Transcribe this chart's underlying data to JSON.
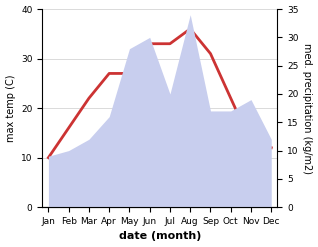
{
  "months": [
    "Jan",
    "Feb",
    "Mar",
    "Apr",
    "May",
    "Jun",
    "Jul",
    "Aug",
    "Sep",
    "Oct",
    "Nov",
    "Dec"
  ],
  "month_positions": [
    0,
    1,
    2,
    3,
    4,
    5,
    6,
    7,
    8,
    9,
    10,
    11
  ],
  "max_temp": [
    10,
    16,
    22,
    27,
    27,
    33,
    33,
    36,
    31,
    22,
    13,
    12
  ],
  "precipitation": [
    9,
    10,
    12,
    16,
    28,
    30,
    20,
    34,
    17,
    17,
    19,
    12
  ],
  "temp_color": "#cc3333",
  "precip_fill_color": "#c8ceee",
  "temp_ylim": [
    0,
    40
  ],
  "precip_ylim": [
    0,
    35
  ],
  "temp_yticks": [
    0,
    10,
    20,
    30,
    40
  ],
  "precip_yticks": [
    0,
    5,
    10,
    15,
    20,
    25,
    30,
    35
  ],
  "xlabel": "date (month)",
  "ylabel_left": "max temp (C)",
  "ylabel_right": "med. precipitation (kg/m2)",
  "background_color": "#ffffff",
  "label_fontsize": 7,
  "xlabel_fontsize": 8,
  "tick_fontsize": 6.5
}
